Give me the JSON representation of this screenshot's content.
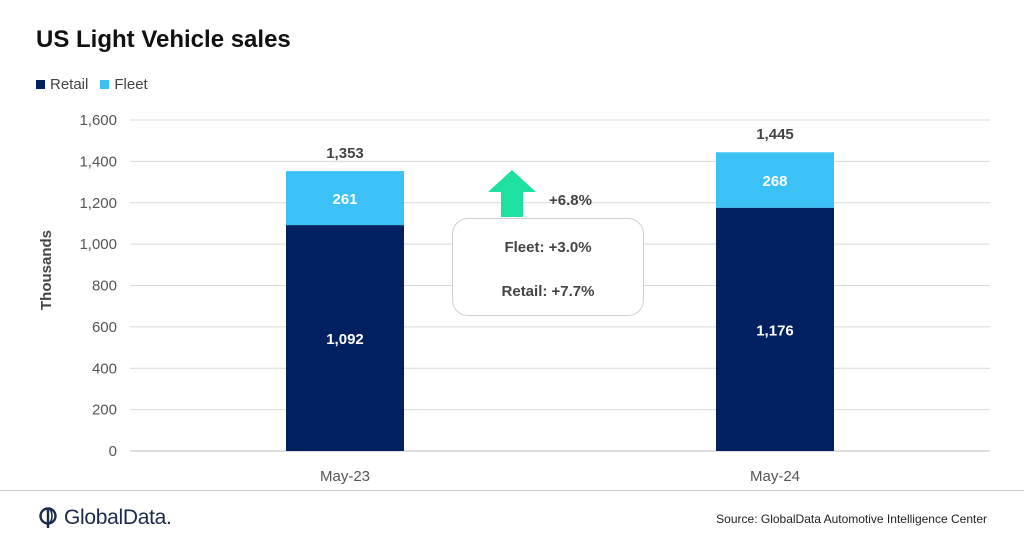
{
  "chart_data": {
    "type": "bar",
    "stacked": true,
    "title": "US Light Vehicle sales",
    "ylabel": "Thousands",
    "xlabel": "",
    "categories": [
      "May-23",
      "May-24"
    ],
    "series": [
      {
        "name": "Retail",
        "values": [
          1092,
          1176
        ],
        "color": "#002060"
      },
      {
        "name": "Fleet",
        "values": [
          261,
          268
        ],
        "color": "#3CC1F7"
      }
    ],
    "totals": [
      1353,
      1445
    ],
    "value_labels": {
      "Retail": [
        "1,092",
        "1,176"
      ],
      "Fleet": [
        "261",
        "268"
      ],
      "totals": [
        "1,353",
        "1,445"
      ]
    },
    "ylim": [
      0,
      1600
    ],
    "yticks": [
      0,
      200,
      400,
      600,
      800,
      1000,
      1200,
      1400,
      1600
    ],
    "ytick_labels": [
      "0",
      "200",
      "400",
      "600",
      "800",
      "1,000",
      "1,200",
      "1,400",
      "1,600"
    ],
    "grid": true,
    "legend_position": "top-left"
  },
  "annotations": {
    "total_change": "+6.8%",
    "fleet_change": "Fleet: +3.0%",
    "retail_change": "Retail: +7.7%",
    "arrow_color": "#1EE0A0",
    "arrow_icon": "up-arrow-icon"
  },
  "footer": {
    "brand": "GlobalData.",
    "source": "Source: GlobalData Automotive  Intelligence Center"
  }
}
